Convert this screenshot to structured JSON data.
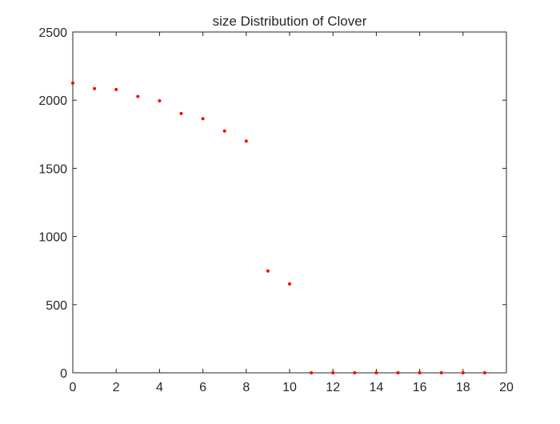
{
  "colors": {
    "background": "#ffffff",
    "axis": "#262626",
    "marker": "#ff0000"
  },
  "chart_data": {
    "type": "scatter",
    "title": "size Distribution of Clover",
    "xlabel": "",
    "ylabel": "",
    "xlim": [
      0,
      20
    ],
    "ylim": [
      0,
      2500
    ],
    "grid": false,
    "box": true,
    "marker_style": "dot",
    "xticks": [
      0,
      2,
      4,
      6,
      8,
      10,
      12,
      14,
      16,
      18,
      20
    ],
    "yticks": [
      0,
      500,
      1000,
      1500,
      2000,
      2500
    ],
    "xtick_labels": [
      "0",
      "2",
      "4",
      "6",
      "8",
      "10",
      "12",
      "14",
      "16",
      "18",
      "20"
    ],
    "ytick_labels": [
      "0",
      "500",
      "1000",
      "1500",
      "2000",
      "2500"
    ],
    "series": [
      {
        "x": [
          0,
          1,
          2,
          3,
          4,
          5,
          6,
          7,
          8,
          9,
          10,
          11,
          12,
          13,
          14,
          15,
          16,
          17,
          18,
          19
        ],
        "y": [
          2125,
          2085,
          2078,
          2027,
          1995,
          1902,
          1864,
          1774,
          1700,
          747,
          652,
          0,
          0,
          0,
          0,
          0,
          0,
          0,
          0,
          0
        ]
      }
    ]
  }
}
